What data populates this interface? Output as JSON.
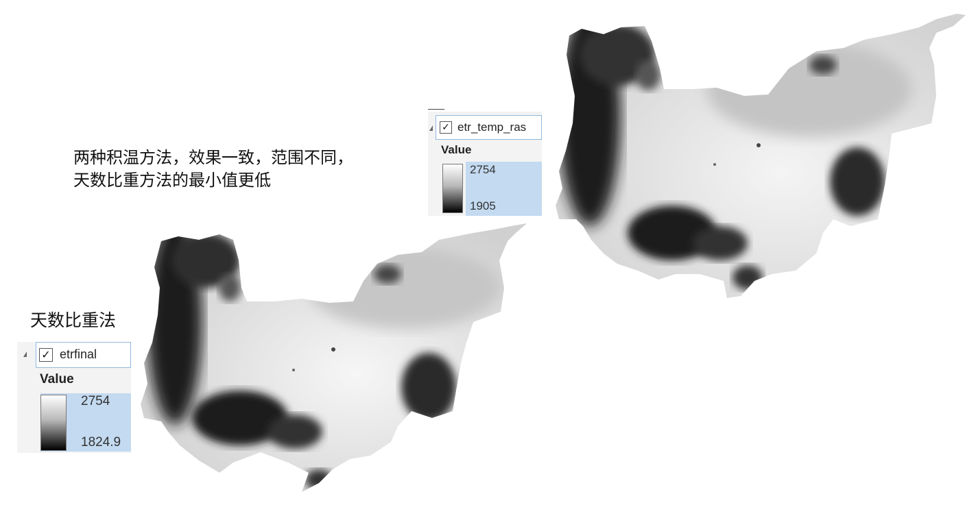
{
  "note": {
    "line1": "两种积温方法，效果一致，范围不同，",
    "line2": "天数比重方法的最小值更低"
  },
  "method_label": "天数比重法",
  "legend_top": {
    "layer_name": "etr_temp_ras",
    "checked": true,
    "value_heading": "Value",
    "max": "2754",
    "min": "1905"
  },
  "legend_bottom": {
    "layer_name": "etrfinal",
    "checked": true,
    "value_heading": "Value",
    "max": "2754",
    "min": "1824.9"
  },
  "colors": {
    "selection_border": "#8fb8de",
    "selection_fill": "#c3daf0",
    "ramp_high": "#ffffff",
    "ramp_low": "#000000"
  },
  "icons": {
    "checkbox": "check-icon",
    "expander": "expand-triangle-icon"
  }
}
